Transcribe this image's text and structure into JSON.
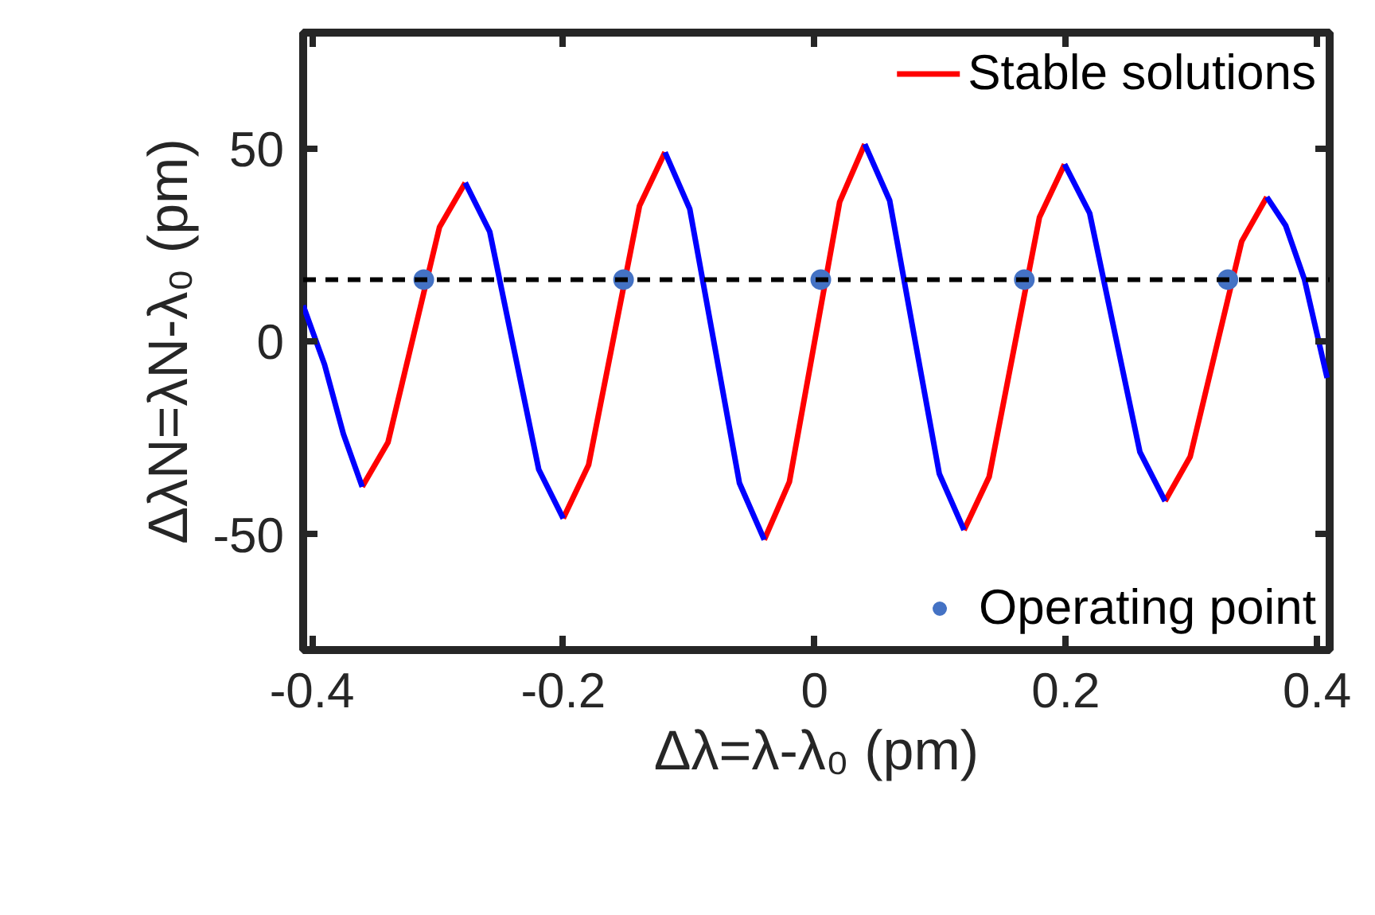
{
  "chart_data": {
    "type": "line",
    "xlabel": "Δλ=λ-λ₀ (pm)",
    "ylabel": "ΔλN=λN-λ₀ (pm)",
    "xlim": [
      -0.407,
      0.41
    ],
    "ylim": [
      -80,
      80
    ],
    "xticks": [
      -0.4,
      -0.2,
      0,
      0.2,
      0.4
    ],
    "yticks": [
      -50,
      0,
      50
    ],
    "grid": false,
    "legend": "right",
    "line_style": "solid",
    "series": [
      {
        "name": "Stable solutions",
        "color": "#ff0000",
        "x": [
          -0.36,
          -0.3395,
          -0.319,
          -0.2985,
          -0.278,
          -0.25,
          -0.2,
          -0.1798,
          -0.1595,
          -0.1393,
          -0.119,
          -0.08,
          -0.04,
          -0.02,
          0.0,
          0.02,
          0.04,
          0.08,
          0.119,
          0.139,
          0.159,
          0.179,
          0.199,
          0.24,
          0.279,
          0.299,
          0.3195,
          0.34,
          0.36
        ],
        "values": [
          -37.7,
          -26.2,
          1.7,
          29.6,
          41.1,
          null,
          -45.9,
          -32.0,
          1.6,
          35.1,
          49.0,
          null,
          -51.4,
          -36.4,
          -0.2,
          36.1,
          51.1,
          null,
          -48.9,
          -35.1,
          -1.5,
          32.1,
          45.9,
          null,
          -41.4,
          -29.9,
          -2.0,
          25.9,
          37.4
        ]
      },
      {
        "color": "#0000ff",
        "x": [
          -0.407,
          -0.39,
          -0.375,
          -0.36,
          -0.33,
          -0.278,
          -0.2585,
          -0.239,
          -0.2195,
          -0.2,
          -0.16,
          -0.119,
          -0.0993,
          -0.0795,
          -0.0598,
          -0.04,
          0.0,
          0.04,
          0.0598,
          0.0795,
          0.0993,
          0.119,
          0.16,
          0.199,
          0.219,
          0.239,
          0.259,
          0.279,
          0.32,
          0.36,
          0.375,
          0.39,
          0.408
        ],
        "values": [
          9.3,
          -6,
          -24,
          -37.7,
          null,
          41.1,
          28.4,
          -2.4,
          -33.2,
          -45.9,
          null,
          49.0,
          34.3,
          -1.2,
          -36.7,
          -51.4,
          null,
          51.1,
          36.5,
          1.1,
          -34.3,
          -48.9,
          null,
          45.9,
          33.2,
          2.2,
          -28.7,
          -41.4,
          null,
          37.4,
          30,
          16,
          -9.5
        ]
      },
      {
        "name": "Operating point",
        "type": "scatter",
        "marker": "circle",
        "color": "#4472c4",
        "x": [
          -0.311,
          -0.152,
          0.005,
          0.167,
          0.329
        ],
        "values": [
          16,
          16,
          16,
          16,
          16
        ]
      }
    ],
    "ref_lines": [
      {
        "axis": "y",
        "value": 16,
        "color": "#000000",
        "line_style": "dashed"
      }
    ]
  }
}
